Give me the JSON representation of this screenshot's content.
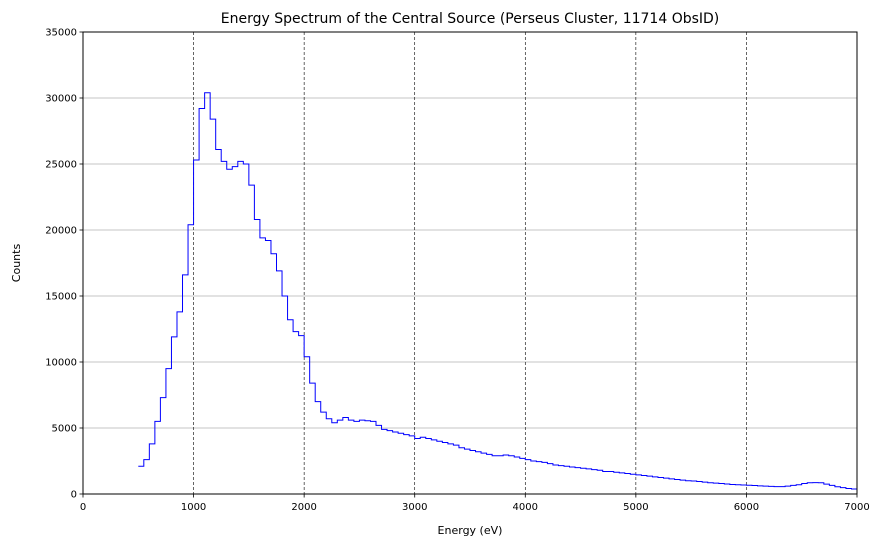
{
  "chart_data": {
    "type": "line",
    "style": "step-histogram",
    "title": "Energy Spectrum of the Central Source (Perseus Cluster, 11714 ObsID)",
    "xlabel": "Energy (eV)",
    "ylabel": "Counts",
    "xlim": [
      0,
      7000
    ],
    "ylim": [
      0,
      35000
    ],
    "xticks": [
      0,
      1000,
      2000,
      3000,
      4000,
      5000,
      6000,
      7000
    ],
    "yticks": [
      0,
      5000,
      10000,
      15000,
      20000,
      25000,
      30000,
      35000
    ],
    "grid": {
      "y": "solid gray",
      "x": "dashed black"
    },
    "series": [
      {
        "color": "#0000ff",
        "bin_width": 50,
        "x": [
          500,
          550,
          600,
          650,
          700,
          750,
          800,
          850,
          900,
          950,
          1000,
          1050,
          1100,
          1150,
          1200,
          1250,
          1300,
          1350,
          1400,
          1450,
          1500,
          1550,
          1600,
          1650,
          1700,
          1750,
          1800,
          1850,
          1900,
          1950,
          2000,
          2050,
          2100,
          2150,
          2200,
          2250,
          2300,
          2350,
          2400,
          2450,
          2500,
          2550,
          2600,
          2650,
          2700,
          2750,
          2800,
          2850,
          2900,
          2950,
          3000,
          3050,
          3100,
          3150,
          3200,
          3250,
          3300,
          3350,
          3400,
          3450,
          3500,
          3550,
          3600,
          3650,
          3700,
          3750,
          3800,
          3850,
          3900,
          3950,
          4000,
          4050,
          4100,
          4150,
          4200,
          4250,
          4300,
          4350,
          4400,
          4450,
          4500,
          4550,
          4600,
          4650,
          4700,
          4750,
          4800,
          4850,
          4900,
          4950,
          5000,
          5050,
          5100,
          5150,
          5200,
          5250,
          5300,
          5350,
          5400,
          5450,
          5500,
          5550,
          5600,
          5650,
          5700,
          5750,
          5800,
          5850,
          5900,
          5950,
          6000,
          6050,
          6100,
          6150,
          6200,
          6250,
          6300,
          6350,
          6400,
          6450,
          6500,
          6550,
          6600,
          6650,
          6700,
          6750,
          6800,
          6850,
          6900,
          6950
        ],
        "values": [
          2100,
          2600,
          3800,
          5500,
          7300,
          9500,
          11900,
          13800,
          16600,
          20400,
          25300,
          29200,
          30400,
          28400,
          26100,
          25200,
          24600,
          24800,
          25200,
          25000,
          23400,
          20800,
          19400,
          19200,
          18200,
          16900,
          15000,
          13200,
          12300,
          12000,
          10400,
          8400,
          7000,
          6200,
          5700,
          5400,
          5600,
          5800,
          5600,
          5500,
          5600,
          5550,
          5500,
          5200,
          4900,
          4800,
          4700,
          4600,
          4500,
          4400,
          4200,
          4300,
          4200,
          4100,
          4000,
          3900,
          3800,
          3700,
          3500,
          3400,
          3300,
          3200,
          3100,
          3000,
          2900,
          2900,
          2950,
          2900,
          2800,
          2700,
          2600,
          2500,
          2450,
          2400,
          2300,
          2200,
          2150,
          2100,
          2050,
          2000,
          1950,
          1900,
          1850,
          1800,
          1700,
          1700,
          1650,
          1600,
          1550,
          1500,
          1450,
          1400,
          1350,
          1300,
          1250,
          1200,
          1150,
          1100,
          1050,
          1000,
          980,
          950,
          900,
          850,
          820,
          800,
          760,
          720,
          700,
          680,
          660,
          640,
          620,
          600,
          580,
          560,
          560,
          600,
          650,
          700,
          800,
          850,
          860,
          850,
          750,
          650,
          550,
          480,
          420,
          380
        ]
      }
    ]
  }
}
